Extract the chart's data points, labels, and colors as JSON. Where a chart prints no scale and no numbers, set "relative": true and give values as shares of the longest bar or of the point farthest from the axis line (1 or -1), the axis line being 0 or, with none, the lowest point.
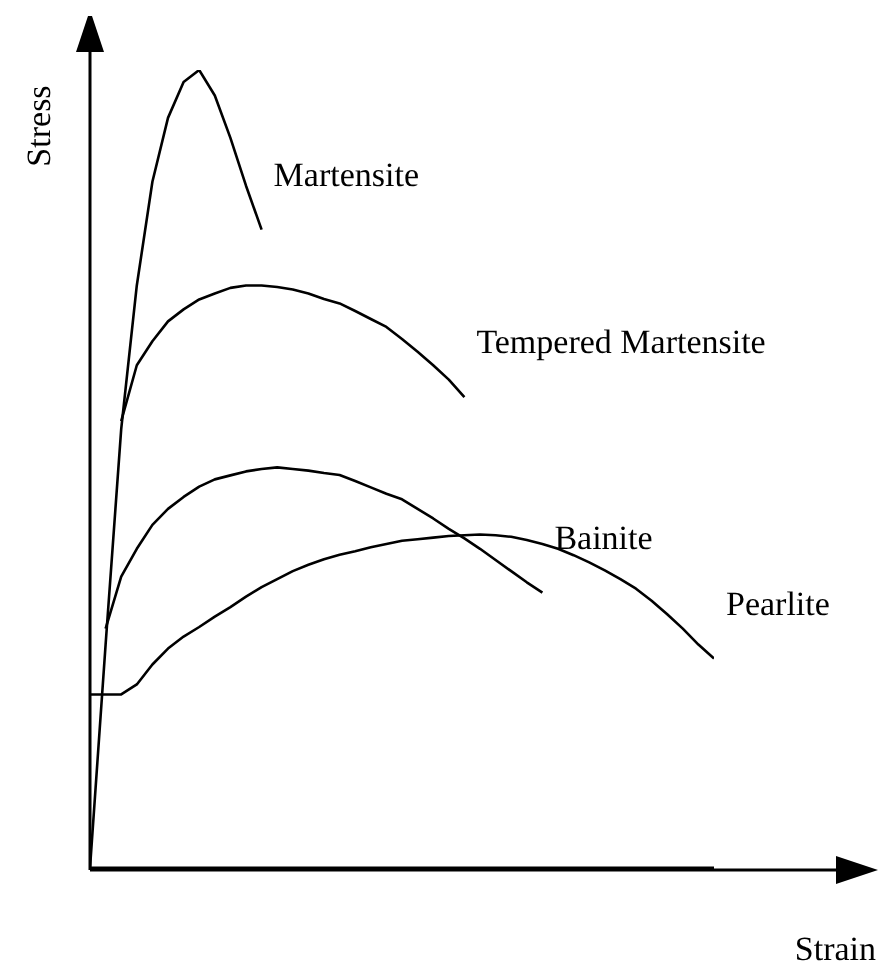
{
  "chart_data": {
    "type": "line",
    "xlabel": "Strain",
    "ylabel": "Stress",
    "relative": true,
    "grid": false,
    "legend": false,
    "marker": "none",
    "line_style": "solid",
    "categories": [
      null,
      null,
      null,
      null,
      null,
      null,
      null,
      null,
      null,
      null,
      null,
      null,
      null,
      null,
      null,
      null,
      null,
      null,
      null,
      null,
      null,
      null,
      null,
      null,
      null,
      null,
      null,
      null,
      null,
      null,
      null,
      null,
      null,
      null,
      null,
      null,
      null,
      null,
      null,
      null,
      null
    ],
    "series": [
      {
        "name": "Martensite",
        "color": "#000000",
        "values": [
          0,
          0.28,
          0.55,
          0.73,
          0.86,
          0.94,
          0.985,
          1.0,
          0.968,
          0.915,
          0.855,
          0.8,
          null,
          null,
          null,
          null,
          null,
          null,
          null,
          null,
          null,
          null,
          null,
          null,
          null,
          null,
          null,
          null,
          null,
          null,
          null,
          null,
          null,
          null,
          null,
          null,
          null,
          null,
          null,
          null,
          null
        ]
      },
      {
        "name": "Tempered Martensite",
        "color": "#000000",
        "values": [
          null,
          null,
          0.56,
          0.63,
          0.66,
          0.685,
          0.7,
          0.7125,
          0.72,
          0.727,
          0.73,
          0.73,
          0.728,
          0.725,
          0.72,
          0.713,
          0.7075,
          0.698,
          0.688,
          0.678,
          0.663,
          0.647,
          0.63,
          0.612,
          0.59,
          null,
          null,
          null,
          null,
          null,
          null,
          null,
          null,
          null,
          null,
          null,
          null,
          null,
          null,
          null,
          null
        ]
      },
      {
        "name": "Bainite",
        "color": "#000000",
        "values": [
          null,
          0.3,
          0.365,
          0.4,
          0.43,
          0.45,
          0.465,
          0.478,
          0.487,
          0.492,
          0.497,
          0.5,
          0.502,
          0.5,
          0.498,
          0.495,
          0.4925,
          0.485,
          0.477,
          0.469,
          0.462,
          0.45,
          0.438,
          0.425,
          0.413,
          0.4,
          0.386,
          0.372,
          0.358,
          0.345,
          null,
          null,
          null,
          null,
          null,
          null,
          null,
          null,
          null,
          null,
          null
        ]
      },
      {
        "name": "Pearlite",
        "color": "#000000",
        "values": [
          0.2175,
          0.2175,
          0.2175,
          0.23,
          0.255,
          0.275,
          0.29,
          0.302,
          0.315,
          0.327,
          0.34,
          0.352,
          0.362,
          0.372,
          0.38,
          0.387,
          0.3925,
          0.397,
          0.402,
          0.406,
          0.41,
          0.412,
          0.414,
          0.416,
          0.417,
          0.418,
          0.417,
          0.415,
          0.411,
          0.406,
          0.4,
          0.392,
          0.383,
          0.373,
          0.362,
          0.35,
          0.335,
          0.318,
          0.3,
          0.28,
          0.2625
        ]
      }
    ]
  }
}
